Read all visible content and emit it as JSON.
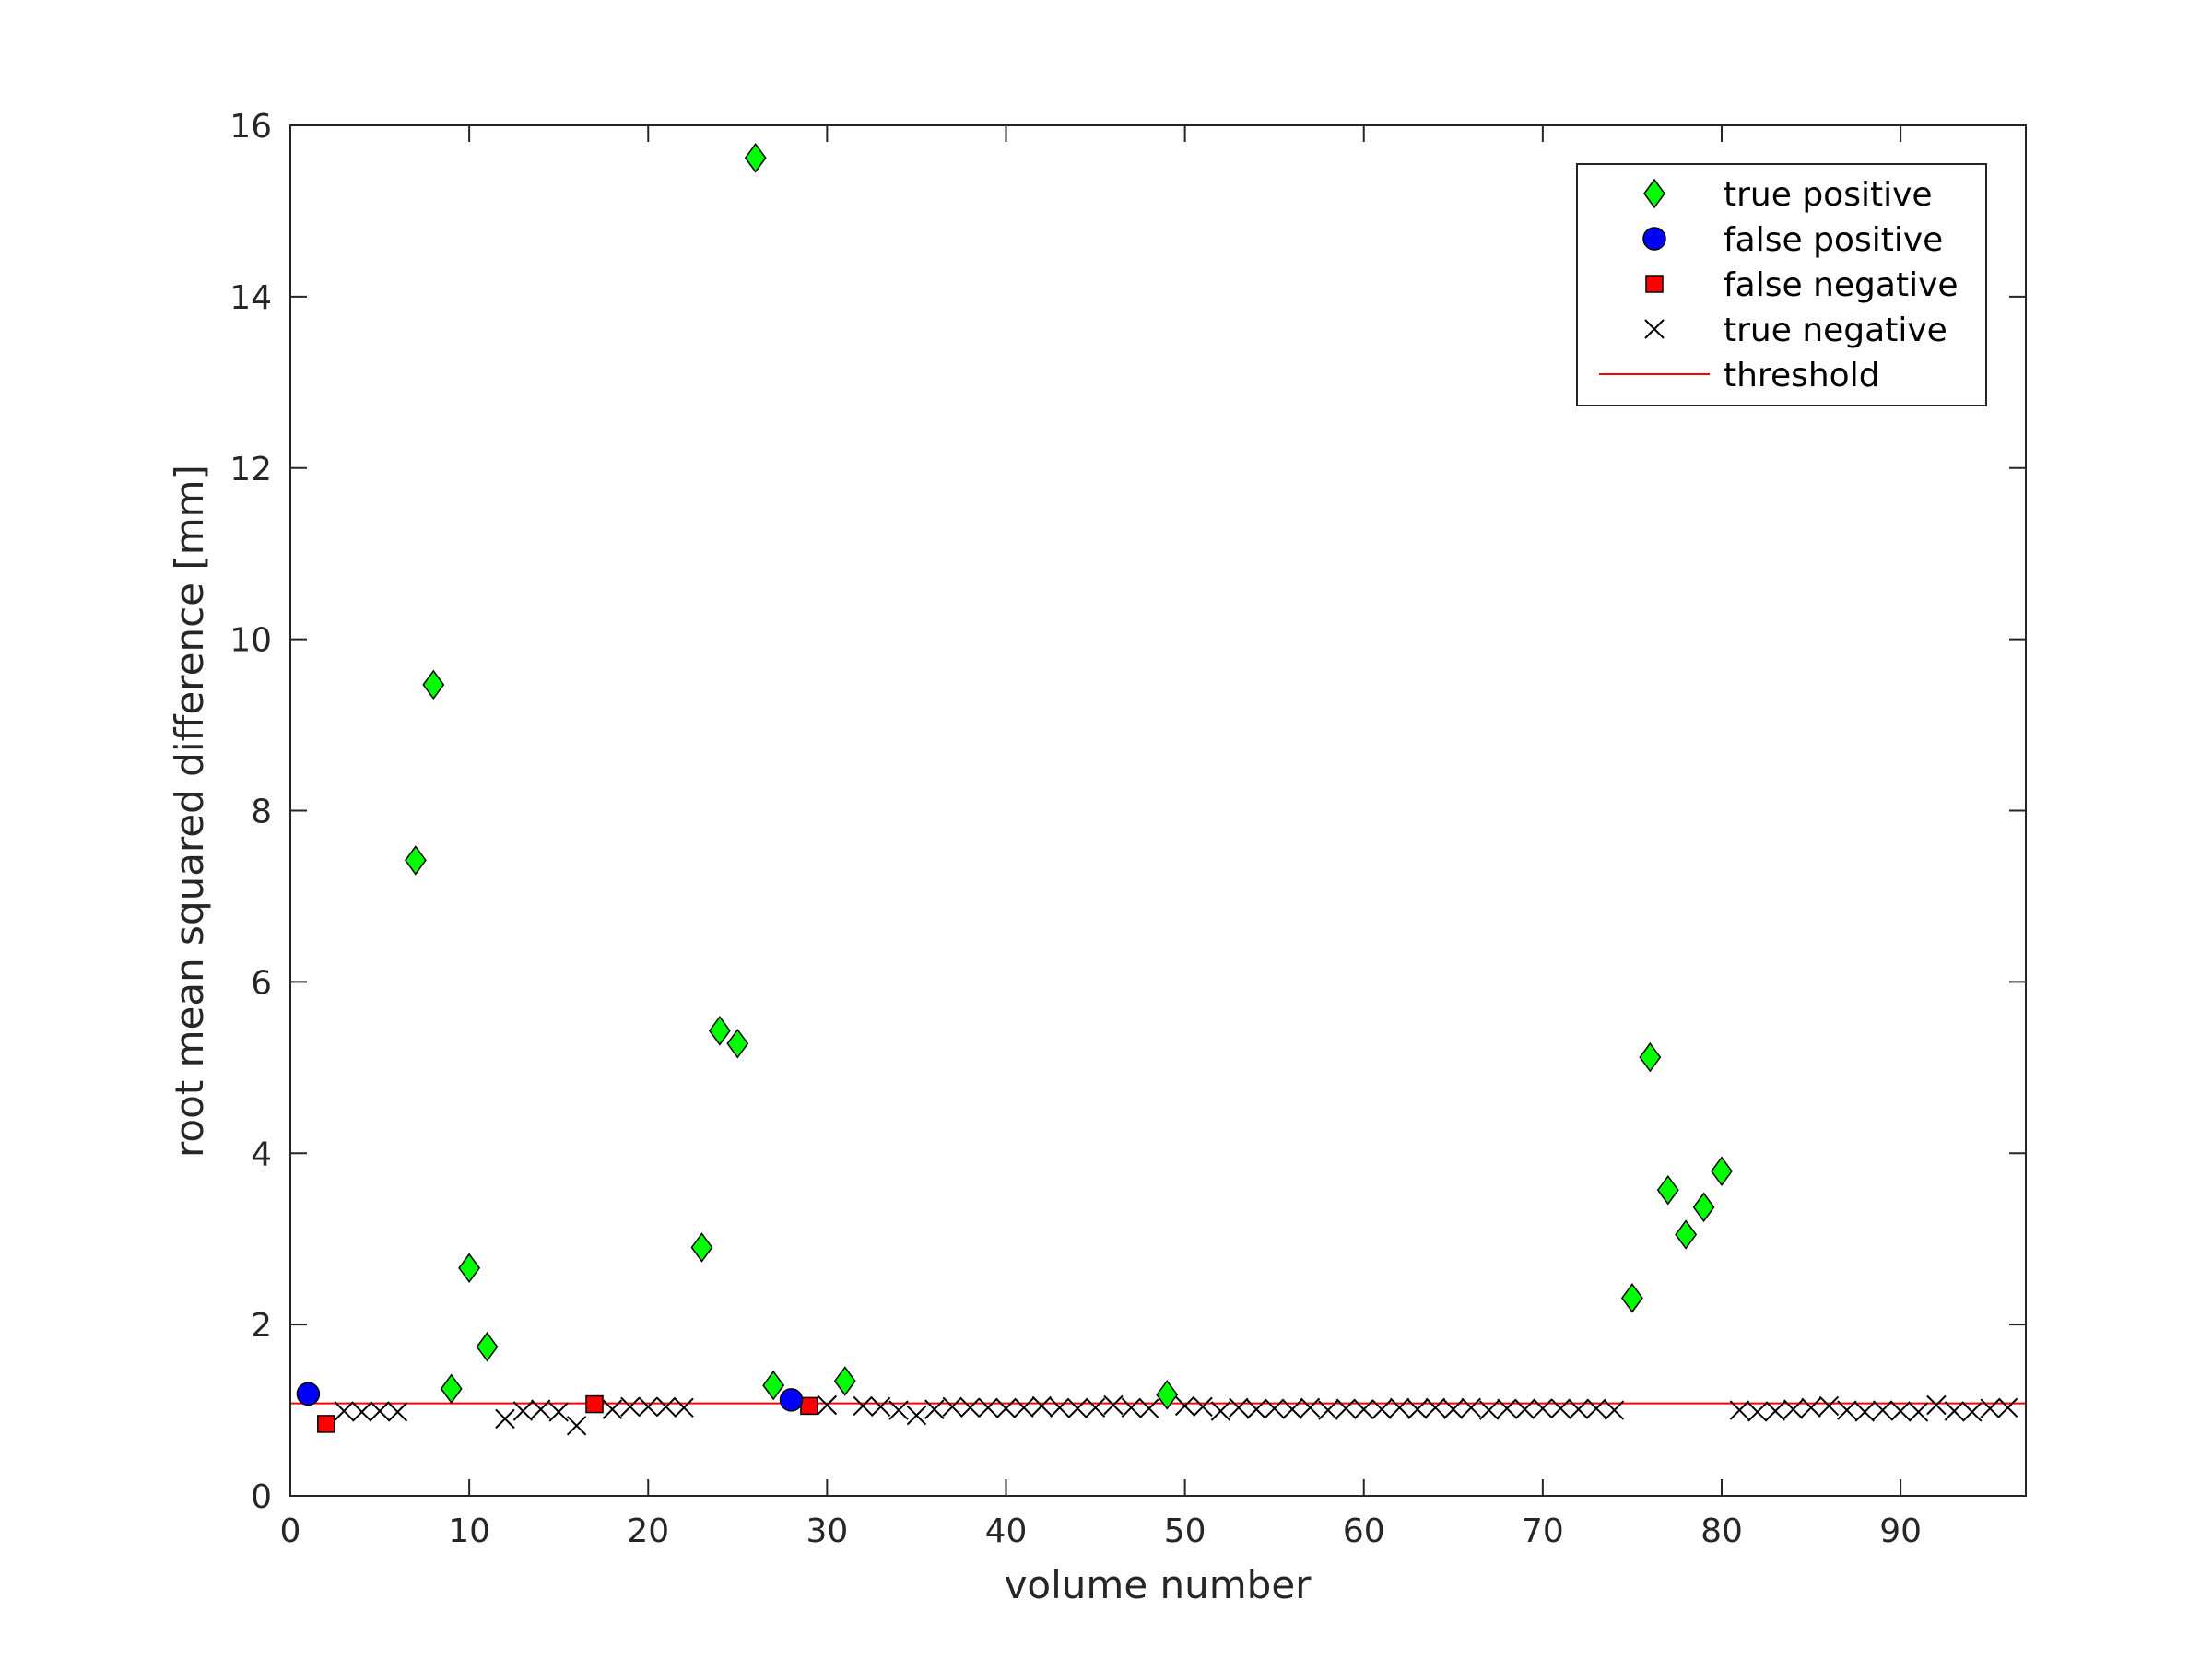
{
  "chart_data": {
    "type": "scatter",
    "title": "",
    "xlabel": "volume number",
    "ylabel": "root mean squared difference [mm]",
    "xlim": [
      0,
      97
    ],
    "ylim": [
      0,
      16
    ],
    "xticks": [
      0,
      10,
      20,
      30,
      40,
      50,
      60,
      70,
      80,
      90
    ],
    "yticks": [
      0,
      2,
      4,
      6,
      8,
      10,
      12,
      14,
      16
    ],
    "grid": false,
    "legend_position": "top-right",
    "threshold": 1.08,
    "series": [
      {
        "name": "true positive",
        "marker": "diamond",
        "color": "#00ff00",
        "points": [
          [
            7,
            7.42
          ],
          [
            8,
            9.47
          ],
          [
            9,
            1.25
          ],
          [
            10,
            2.66
          ],
          [
            11,
            1.74
          ],
          [
            23,
            2.9
          ],
          [
            24,
            5.43
          ],
          [
            25,
            5.28
          ],
          [
            26,
            15.62
          ],
          [
            27,
            1.29
          ],
          [
            31,
            1.34
          ],
          [
            49,
            1.18
          ],
          [
            75,
            2.31
          ],
          [
            76,
            5.12
          ],
          [
            77,
            3.57
          ],
          [
            78,
            3.05
          ],
          [
            79,
            3.37
          ],
          [
            80,
            3.79
          ]
        ]
      },
      {
        "name": "false positive",
        "marker": "circle",
        "color": "#0000ff",
        "points": [
          [
            1,
            1.19
          ],
          [
            28,
            1.12
          ]
        ]
      },
      {
        "name": "false negative",
        "marker": "square",
        "color": "#ff0000",
        "points": [
          [
            2,
            0.84
          ],
          [
            17,
            1.07
          ],
          [
            29,
            1.05
          ]
        ]
      },
      {
        "name": "true negative",
        "marker": "x",
        "color": "#000000",
        "points": [
          [
            3,
            0.99
          ],
          [
            4,
            0.98
          ],
          [
            5,
            0.99
          ],
          [
            6,
            0.98
          ],
          [
            12,
            0.9
          ],
          [
            13,
            0.99
          ],
          [
            14,
            1.01
          ],
          [
            15,
            0.98
          ],
          [
            16,
            0.82
          ],
          [
            18,
            1.01
          ],
          [
            19,
            1.04
          ],
          [
            20,
            1.04
          ],
          [
            21,
            1.04
          ],
          [
            22,
            1.03
          ],
          [
            30,
            1.06
          ],
          [
            32,
            1.05
          ],
          [
            33,
            1.04
          ],
          [
            34,
            1.0
          ],
          [
            35,
            0.94
          ],
          [
            36,
            1.01
          ],
          [
            37,
            1.04
          ],
          [
            38,
            1.03
          ],
          [
            39,
            1.03
          ],
          [
            40,
            1.02
          ],
          [
            41,
            1.03
          ],
          [
            42,
            1.05
          ],
          [
            43,
            1.03
          ],
          [
            44,
            1.02
          ],
          [
            45,
            1.03
          ],
          [
            46,
            1.06
          ],
          [
            47,
            1.03
          ],
          [
            48,
            1.02
          ],
          [
            50,
            1.05
          ],
          [
            51,
            1.04
          ],
          [
            52,
            0.99
          ],
          [
            53,
            1.03
          ],
          [
            54,
            1.01
          ],
          [
            55,
            1.02
          ],
          [
            56,
            1.01
          ],
          [
            57,
            1.03
          ],
          [
            58,
            1.0
          ],
          [
            59,
            1.02
          ],
          [
            60,
            1.01
          ],
          [
            61,
            1.01
          ],
          [
            62,
            1.03
          ],
          [
            63,
            1.01
          ],
          [
            64,
            1.03
          ],
          [
            65,
            1.01
          ],
          [
            66,
            1.03
          ],
          [
            67,
            1.0
          ],
          [
            68,
            1.02
          ],
          [
            69,
            1.01
          ],
          [
            70,
            1.02
          ],
          [
            71,
            1.02
          ],
          [
            72,
            1.01
          ],
          [
            73,
            1.02
          ],
          [
            74,
            1.0
          ],
          [
            81,
            1.0
          ],
          [
            82,
            0.98
          ],
          [
            83,
            0.99
          ],
          [
            84,
            1.01
          ],
          [
            85,
            1.03
          ],
          [
            86,
            1.05
          ],
          [
            87,
            1.0
          ],
          [
            88,
            0.98
          ],
          [
            89,
            1.0
          ],
          [
            90,
            0.99
          ],
          [
            91,
            0.98
          ],
          [
            92,
            1.06
          ],
          [
            93,
            0.99
          ],
          [
            94,
            0.98
          ],
          [
            95,
            1.02
          ],
          [
            96,
            1.03
          ]
        ]
      }
    ],
    "legend": [
      {
        "label": "true positive",
        "marker": "diamond",
        "color": "#00ff00"
      },
      {
        "label": "false positive",
        "marker": "circle",
        "color": "#0000ff"
      },
      {
        "label": "false negative",
        "marker": "square",
        "color": "#ff0000"
      },
      {
        "label": "true negative",
        "marker": "x",
        "color": "#000000"
      },
      {
        "label": "threshold",
        "marker": "line",
        "color": "#ff0000"
      }
    ]
  }
}
